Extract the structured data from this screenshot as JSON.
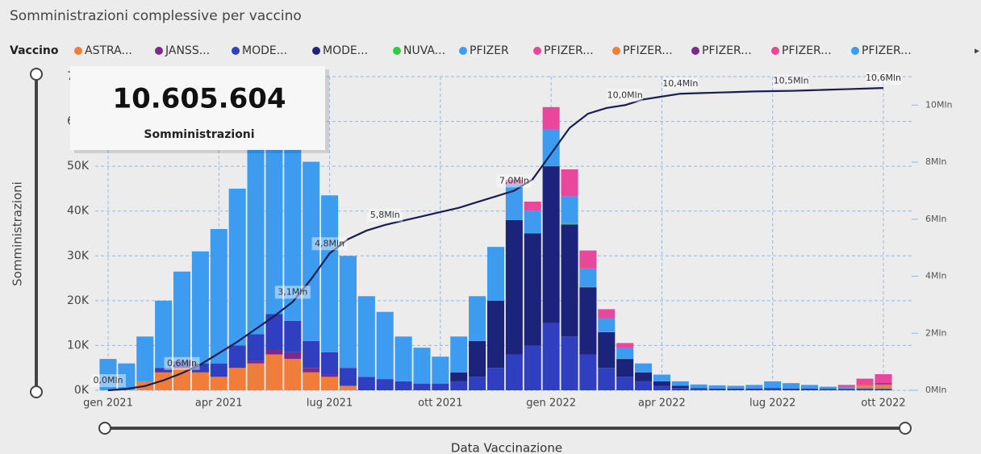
{
  "chart_data": {
    "type": "bar",
    "stacked": true,
    "title": "Somministrazioni complessive per vaccino",
    "legend_title": "Vaccino",
    "y_label": "Somministrazioni",
    "x_label": "Data Vaccinazione",
    "kpi_value": "10.605.604",
    "kpi_label": "Somministrazioni",
    "grid": true,
    "categories": [
      "gen 2021",
      null,
      null,
      null,
      null,
      null,
      "apr 2021",
      null,
      null,
      null,
      null,
      null,
      "lug 2021",
      null,
      null,
      null,
      null,
      null,
      "ott 2021",
      null,
      null,
      null,
      null,
      null,
      "gen 2022",
      null,
      null,
      null,
      null,
      null,
      "apr 2022",
      null,
      null,
      null,
      null,
      null,
      "lug 2022",
      null,
      null,
      null,
      null,
      null,
      "ott 2022"
    ],
    "series": [
      {
        "name": "ASTRA...",
        "color": "#f07d3a",
        "values": [
          0,
          0,
          2000,
          4000,
          5000,
          4000,
          3000,
          5000,
          6000,
          8000,
          7000,
          4000,
          3000,
          1000,
          0,
          0,
          0,
          0,
          0,
          0,
          0,
          0,
          0,
          0,
          0,
          0,
          0,
          0,
          0,
          0,
          0,
          0,
          0,
          0,
          0,
          0,
          0,
          0,
          0,
          0,
          0,
          0,
          0
        ]
      },
      {
        "name": "JANSS...",
        "color": "#7b2a8c",
        "values": [
          0,
          0,
          0,
          0,
          0,
          0,
          0,
          0,
          500,
          1000,
          1500,
          1000,
          500,
          0,
          0,
          0,
          0,
          0,
          0,
          0,
          0,
          0,
          0,
          0,
          0,
          0,
          0,
          0,
          0,
          0,
          0,
          0,
          0,
          0,
          0,
          0,
          0,
          0,
          0,
          0,
          0,
          0,
          0
        ]
      },
      {
        "name": "MODE...",
        "color": "#2f3fbf",
        "values": [
          0,
          0,
          0,
          1000,
          1500,
          2000,
          3000,
          5000,
          6000,
          8000,
          7000,
          6000,
          5000,
          4000,
          3000,
          2500,
          2000,
          1500,
          1500,
          2000,
          3000,
          5000,
          8000,
          10000,
          15000,
          12000,
          8000,
          5000,
          3000,
          2000,
          1000,
          500,
          300,
          200,
          200,
          200,
          300,
          200,
          200,
          100,
          100,
          100,
          100
        ]
      },
      {
        "name": "MODE...",
        "color": "#1c237a",
        "values": [
          0,
          0,
          0,
          0,
          0,
          0,
          0,
          0,
          0,
          0,
          0,
          0,
          0,
          0,
          0,
          0,
          0,
          0,
          0,
          2000,
          8000,
          15000,
          30000,
          25000,
          35000,
          25000,
          15000,
          8000,
          4000,
          2000,
          1000,
          500,
          200,
          200,
          200,
          200,
          200,
          200,
          200,
          200,
          200,
          200,
          200
        ]
      },
      {
        "name": "NUVA...",
        "color": "#2ecc40",
        "values": [
          0,
          0,
          0,
          0,
          0,
          0,
          0,
          0,
          0,
          0,
          0,
          0,
          0,
          0,
          0,
          0,
          0,
          0,
          0,
          0,
          0,
          0,
          0,
          100,
          200,
          300,
          200,
          100,
          50,
          0,
          0,
          0,
          0,
          0,
          0,
          0,
          0,
          0,
          0,
          0,
          0,
          0,
          0
        ]
      },
      {
        "name": "PFIZER",
        "color": "#3d9bf0",
        "values": [
          7000,
          6000,
          10000,
          15000,
          20000,
          25000,
          30000,
          35000,
          45000,
          50000,
          45000,
          40000,
          35000,
          25000,
          18000,
          15000,
          10000,
          8000,
          6000,
          8000,
          10000,
          12000,
          8000,
          5000,
          8000,
          6000,
          4000,
          3000,
          2500,
          2000,
          1500,
          1000,
          800,
          700,
          600,
          800,
          1500,
          1200,
          800,
          500,
          400,
          300,
          200
        ]
      },
      {
        "name": "PFIZER...",
        "color": "#e8479b",
        "values": [
          0,
          0,
          0,
          0,
          0,
          0,
          0,
          0,
          0,
          0,
          0,
          0,
          0,
          0,
          0,
          0,
          0,
          0,
          0,
          0,
          0,
          0,
          1000,
          2000,
          5000,
          6000,
          4000,
          2000,
          1000,
          0,
          0,
          0,
          0,
          0,
          0,
          0,
          0,
          0,
          0,
          0,
          0,
          0,
          0
        ]
      },
      {
        "name": "PFIZER...",
        "color": "#f07d3a",
        "values": [
          0,
          0,
          0,
          0,
          0,
          0,
          0,
          0,
          0,
          0,
          0,
          0,
          0,
          0,
          0,
          0,
          0,
          0,
          0,
          0,
          0,
          0,
          0,
          0,
          0,
          0,
          0,
          0,
          0,
          0,
          0,
          0,
          0,
          0,
          0,
          0,
          0,
          0,
          0,
          0,
          0,
          500,
          800
        ]
      },
      {
        "name": "PFIZER...",
        "color": "#7b2a8c",
        "values": [
          0,
          0,
          0,
          0,
          0,
          0,
          0,
          0,
          0,
          0,
          0,
          0,
          0,
          0,
          0,
          0,
          0,
          0,
          0,
          0,
          0,
          0,
          0,
          0,
          0,
          0,
          0,
          0,
          0,
          0,
          0,
          0,
          0,
          0,
          0,
          0,
          0,
          0,
          0,
          0,
          0,
          0,
          300
        ]
      },
      {
        "name": "PFIZER...",
        "color": "#e8479b",
        "values": [
          0,
          0,
          0,
          0,
          0,
          0,
          0,
          0,
          0,
          0,
          0,
          0,
          0,
          0,
          0,
          0,
          0,
          0,
          0,
          0,
          0,
          0,
          0,
          0,
          0,
          0,
          0,
          0,
          0,
          0,
          0,
          0,
          0,
          0,
          0,
          0,
          0,
          0,
          0,
          0,
          500,
          1500,
          2000
        ]
      },
      {
        "name": "PFIZER...",
        "color": "#3d9bf0",
        "values": [
          0,
          0,
          0,
          0,
          0,
          0,
          0,
          0,
          0,
          0,
          0,
          0,
          0,
          0,
          0,
          0,
          0,
          0,
          0,
          0,
          0,
          0,
          0,
          0,
          0,
          0,
          0,
          0,
          0,
          0,
          0,
          0,
          0,
          0,
          0,
          0,
          0,
          0,
          0,
          0,
          0,
          0,
          0
        ]
      }
    ],
    "cumulative": {
      "axis": "y2",
      "color": "#1a1f4f",
      "values": [
        0,
        50000,
        150000,
        350000,
        600000,
        900000,
        1300000,
        1700000,
        2150000,
        2600000,
        3100000,
        3900000,
        4800000,
        5300000,
        5600000,
        5800000,
        5950000,
        6100000,
        6250000,
        6400000,
        6600000,
        6800000,
        7000000,
        7400000,
        8300000,
        9200000,
        9700000,
        9900000,
        10000000,
        10200000,
        10300000,
        10400000,
        10420000,
        10440000,
        10460000,
        10480000,
        10490000,
        10500000,
        10520000,
        10540000,
        10560000,
        10580000,
        10600000
      ],
      "value_labels": [
        "0,0Mln",
        null,
        null,
        null,
        "0,6Mln",
        null,
        null,
        null,
        null,
        null,
        "3,1Mln",
        null,
        "4,8Mln",
        null,
        null,
        "5,8Mln",
        null,
        null,
        null,
        null,
        null,
        null,
        "7,0Mln",
        null,
        null,
        null,
        null,
        null,
        "10,0Mln",
        null,
        null,
        "10,4Mln",
        null,
        null,
        null,
        null,
        null,
        "10,5Mln",
        null,
        null,
        null,
        null,
        "10,6Mln"
      ]
    },
    "ylim": [
      0,
      70000
    ],
    "yticks": [
      {
        "value": 0,
        "label": "0K"
      },
      {
        "value": 10000,
        "label": "10K"
      },
      {
        "value": 20000,
        "label": "20K"
      },
      {
        "value": 30000,
        "label": "30K"
      },
      {
        "value": 40000,
        "label": "40K"
      },
      {
        "value": 50000,
        "label": "50K"
      },
      {
        "value": 60000,
        "label": "60K"
      },
      {
        "value": 70000,
        "label": "70K"
      }
    ],
    "y2lim": [
      0,
      11000000
    ],
    "y2ticks": [
      {
        "value": 0,
        "label": "0Mln"
      },
      {
        "value": 2000000,
        "label": "2Mln"
      },
      {
        "value": 4000000,
        "label": "4Mln"
      },
      {
        "value": 6000000,
        "label": "6Mln"
      },
      {
        "value": 8000000,
        "label": "8Mln"
      },
      {
        "value": 10000000,
        "label": "10Mln"
      }
    ]
  }
}
